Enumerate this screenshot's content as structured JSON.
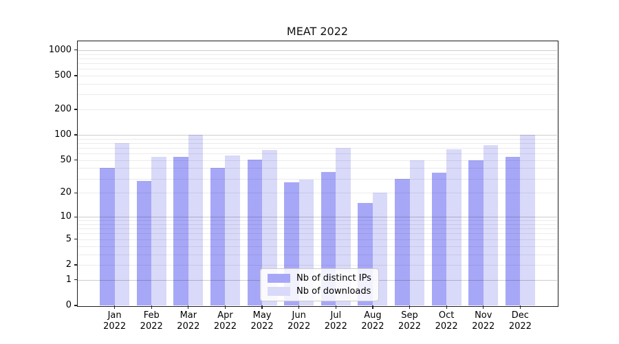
{
  "title": "MEAT 2022",
  "chart_data": {
    "type": "bar",
    "title": "MEAT 2022",
    "categories": [
      "Jan 2022",
      "Feb 2022",
      "Mar 2022",
      "Apr 2022",
      "May 2022",
      "Jun 2022",
      "Jul 2022",
      "Aug 2022",
      "Sep 2022",
      "Oct 2022",
      "Nov 2022",
      "Dec 2022"
    ],
    "series": [
      {
        "name": "Nb of distinct IPs",
        "color": "#a7a7f7",
        "values": [
          40,
          28,
          55,
          40,
          51,
          27,
          36,
          15,
          30,
          35,
          50,
          55
        ]
      },
      {
        "name": "Nb of downloads",
        "color": "#d9d9f9",
        "values": [
          80,
          55,
          100,
          57,
          66,
          29,
          70,
          20,
          50,
          67,
          75,
          100
        ]
      }
    ],
    "xlabel": "",
    "ylabel": "",
    "y_scale": "log1p",
    "y_ticks": [
      0,
      1,
      2,
      5,
      10,
      20,
      50,
      100,
      200,
      500,
      1000
    ],
    "ylim": [
      0,
      1260
    ],
    "grid": true,
    "legend_position": "lower center",
    "colors": {
      "bar_distinct_ips": "#a7a7f7",
      "bar_downloads": "#d9d9f9",
      "major_grid": "rgba(0,0,0,0.20)",
      "minor_grid": "rgba(0,0,0,0.08)",
      "spine": "#1a1a1a",
      "text": "#000000"
    }
  }
}
